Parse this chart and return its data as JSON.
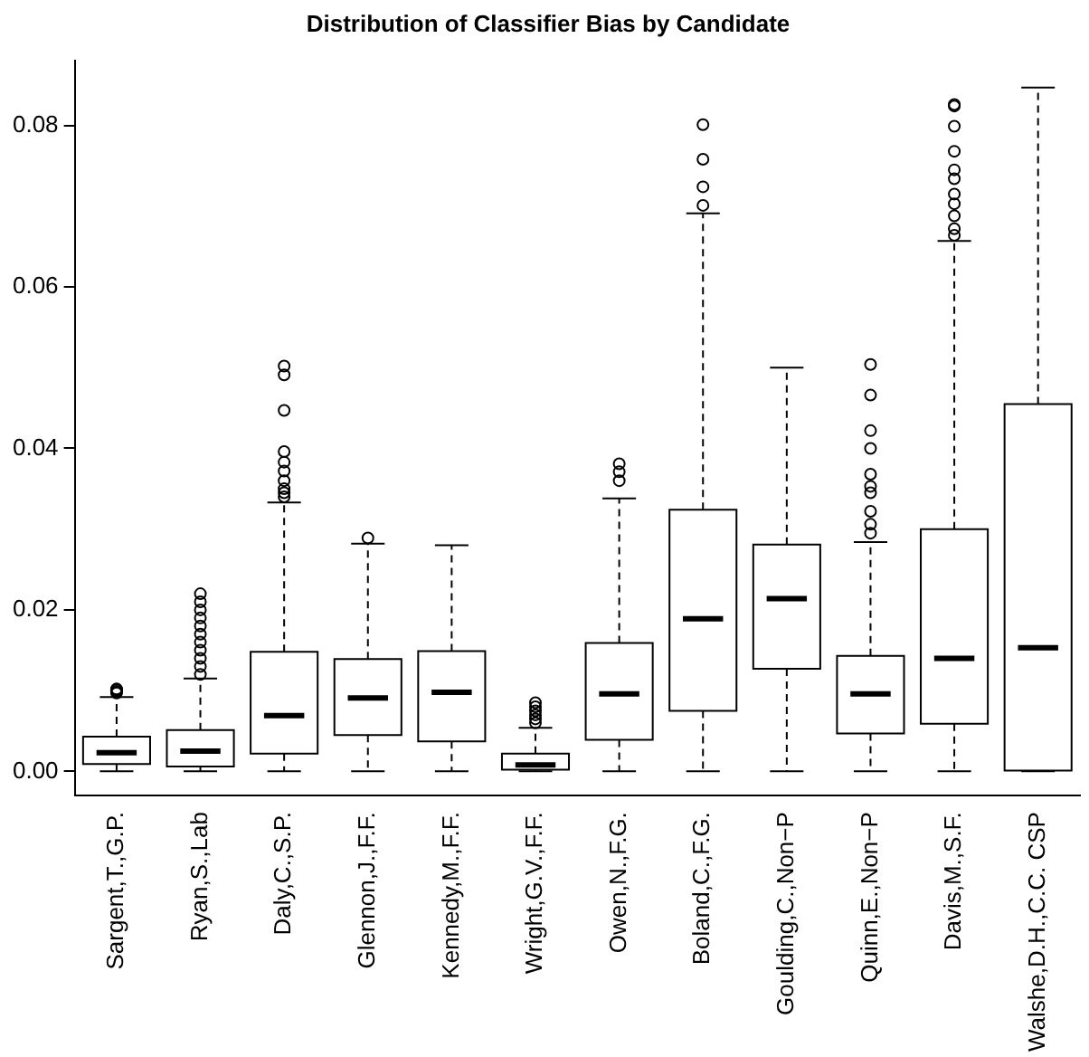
{
  "chart_data": {
    "type": "box",
    "title": "Distribution of Classifier Bias by Candidate",
    "categories": [
      "Sargent,T.,G.P.",
      "Ryan,S.,Lab",
      "Daly,C.,S.P.",
      "Glennon,J.,F.F.",
      "Kennedy,M.,F.F.",
      "Wright,G.V.,F.F.",
      "Owen,N.,F.G.",
      "Boland,C.,F.G.",
      "Goulding,C.,Non−P",
      "Quinn,E.,Non−P",
      "Davis,M.,S.F.",
      "Walshe,D.H.,C.C. CSP"
    ],
    "boxes": [
      {
        "low": 0,
        "q1": 0.0009,
        "median": 0.0023,
        "q3": 0.0043,
        "high": 0.0092,
        "outliers": [
          0.0097,
          0.0099,
          0.0101,
          0.0102
        ]
      },
      {
        "low": 0,
        "q1": 0.0006,
        "median": 0.0025,
        "q3": 0.0051,
        "high": 0.0115,
        "outliers": [
          0.012,
          0.013,
          0.014,
          0.015,
          0.016,
          0.017,
          0.018,
          0.019,
          0.02,
          0.021,
          0.022
        ]
      },
      {
        "low": 0,
        "q1": 0.0022,
        "median": 0.0069,
        "q3": 0.0148,
        "high": 0.0333,
        "outliers": [
          0.034,
          0.0345,
          0.035,
          0.036,
          0.0372,
          0.0383,
          0.0396,
          0.0447,
          0.0491,
          0.0502
        ]
      },
      {
        "low": 0,
        "q1": 0.0045,
        "median": 0.0091,
        "q3": 0.0139,
        "high": 0.0282,
        "outliers": [
          0.0289
        ]
      },
      {
        "low": 0,
        "q1": 0.0037,
        "median": 0.0098,
        "q3": 0.0149,
        "high": 0.028
      },
      {
        "low": 0,
        "q1": 0.0002,
        "median": 0.0008,
        "q3": 0.0022,
        "high": 0.0054,
        "outliers": [
          0.006,
          0.0065,
          0.007,
          0.0075,
          0.008,
          0.0085
        ]
      },
      {
        "low": 0,
        "q1": 0.0039,
        "median": 0.0096,
        "q3": 0.0159,
        "high": 0.0338,
        "outliers": [
          0.036,
          0.0371,
          0.0381
        ]
      },
      {
        "low": 0,
        "q1": 0.0075,
        "median": 0.0189,
        "q3": 0.0324,
        "high": 0.0691,
        "outliers": [
          0.0701,
          0.0724,
          0.0758,
          0.0801
        ]
      },
      {
        "low": 0,
        "q1": 0.0127,
        "median": 0.0214,
        "q3": 0.0281,
        "high": 0.05
      },
      {
        "low": 0,
        "q1": 0.0047,
        "median": 0.0096,
        "q3": 0.0143,
        "high": 0.0284,
        "outliers": [
          0.0295,
          0.0306,
          0.0322,
          0.0345,
          0.0353,
          0.0368,
          0.04,
          0.0422,
          0.0466,
          0.0504
        ]
      },
      {
        "low": 0,
        "q1": 0.0059,
        "median": 0.014,
        "q3": 0.03,
        "high": 0.0657,
        "outliers": [
          0.0664,
          0.0672,
          0.0688,
          0.0703,
          0.0715,
          0.0734,
          0.0745,
          0.0768,
          0.0799,
          0.0824,
          0.0826
        ]
      },
      {
        "low": 0,
        "q1": 0.0001,
        "median": 0.0153,
        "q3": 0.0455,
        "high": 0.0847
      }
    ],
    "ylim": [
      -0.003,
      0.088
    ],
    "yticks": [
      {
        "value": 0,
        "label": "0.00"
      },
      0.02,
      0.04,
      0.06,
      0.08
    ],
    "grid": false,
    "legend": false
  }
}
